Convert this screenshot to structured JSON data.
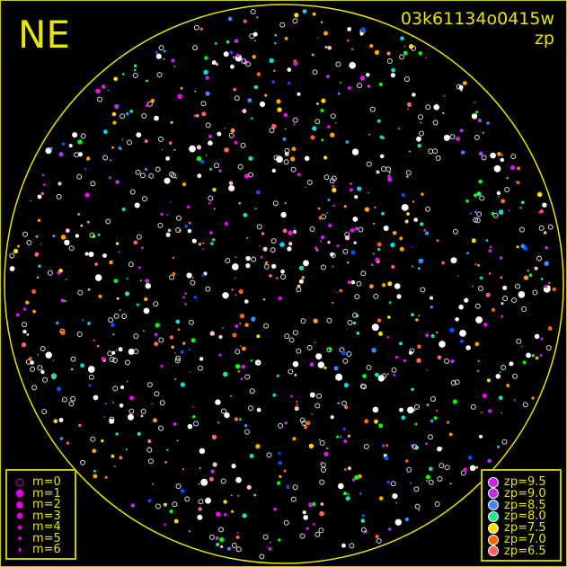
{
  "header": {
    "direction": "NE",
    "obs_id": "03k61134o0415w",
    "mode": "zp"
  },
  "horizon_color": "#e6e600",
  "magnitude_legend": {
    "marker_color": "#e000e0",
    "items": [
      {
        "label": "m=0",
        "marker": "ring"
      },
      {
        "label": "m=1",
        "marker": "dot"
      },
      {
        "label": "m=2",
        "marker": "dot"
      },
      {
        "label": "m=3",
        "marker": "dot"
      },
      {
        "label": "m=4",
        "marker": "dot"
      },
      {
        "label": "m=5",
        "marker": "dot"
      },
      {
        "label": "m=6",
        "marker": "dot"
      }
    ]
  },
  "zp_legend": {
    "items": [
      {
        "label": "zp=9.5",
        "color": "#c81ee6"
      },
      {
        "label": "zp=9.0",
        "color": "#b432e6"
      },
      {
        "label": "zp=8.5",
        "color": "#3c8cff"
      },
      {
        "label": "zp=8.0",
        "color": "#1ee696"
      },
      {
        "label": "zp=7.5",
        "color": "#ffdc00"
      },
      {
        "label": "zp=7.0",
        "color": "#ff6414"
      },
      {
        "label": "zp=6.5",
        "color": "#ff6464"
      }
    ]
  }
}
